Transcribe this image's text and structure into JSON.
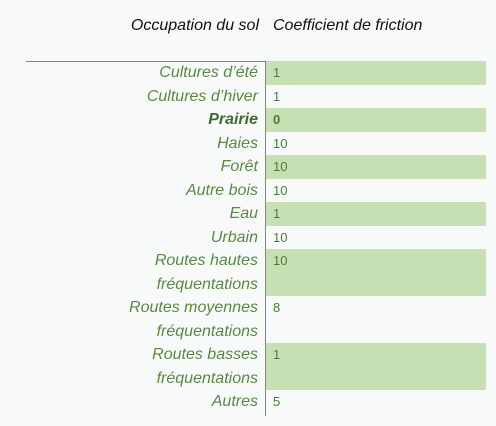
{
  "header": {
    "col1": "Occupation du sol",
    "col2": "Coefficient de friction"
  },
  "rows": [
    {
      "label_lines": [
        "Cultures d’été"
      ],
      "value": "1"
    },
    {
      "label_lines": [
        "Cultures d’hiver"
      ],
      "value": "1"
    },
    {
      "label_lines": [
        "Prairie"
      ],
      "value": "0"
    },
    {
      "label_lines": [
        "Haies"
      ],
      "value": "10"
    },
    {
      "label_lines": [
        "Forêt"
      ],
      "value": "10"
    },
    {
      "label_lines": [
        "Autre bois"
      ],
      "value": "10"
    },
    {
      "label_lines": [
        "Eau"
      ],
      "value": "1"
    },
    {
      "label_lines": [
        "Urbain"
      ],
      "value": "10"
    },
    {
      "label_lines": [
        "Routes hautes",
        "fréquentations"
      ],
      "value": "10"
    },
    {
      "label_lines": [
        "Routes moyennes",
        "fréquentations"
      ],
      "value": "8"
    },
    {
      "label_lines": [
        "Routes basses",
        "fréquentations"
      ],
      "value": "1"
    },
    {
      "label_lines": [
        "Autres"
      ],
      "value": "5"
    }
  ],
  "colors": {
    "band": "#c6e0b4",
    "label_text": "#5b8745",
    "rule": "#6a9a5a"
  }
}
